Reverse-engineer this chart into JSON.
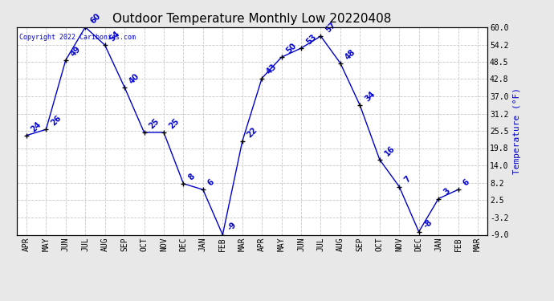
{
  "title": "Outdoor Temperature Monthly Low 20220408",
  "ylabel": "Temperature (°F)",
  "copyright": "Copyright 2022 Caribonics.com",
  "x_labels": [
    "APR",
    "MAY",
    "JUN",
    "JUL",
    "AUG",
    "SEP",
    "OCT",
    "NOV",
    "DEC",
    "JAN",
    "FEB",
    "MAR",
    "APR",
    "MAY",
    "JUN",
    "JUL",
    "AUG",
    "SEP",
    "OCT",
    "NOV",
    "DEC",
    "JAN",
    "FEB",
    "MAR"
  ],
  "y_values": [
    24,
    26,
    49,
    60,
    54,
    40,
    25,
    25,
    8,
    6,
    -9,
    22,
    43,
    50,
    53,
    57,
    48,
    34,
    16,
    7,
    -8,
    3,
    6,
    null
  ],
  "point_labels": [
    "24",
    "26",
    "49",
    "60",
    "54",
    "40",
    "25",
    "25",
    "8",
    "6",
    "-9",
    "22",
    "43",
    "50",
    "53",
    "57",
    "48",
    "34",
    "16",
    "7",
    "-8",
    "3",
    "6",
    ""
  ],
  "ylim_min": -9.0,
  "ylim_max": 60.0,
  "y_ticks_right": [
    60.0,
    54.2,
    48.5,
    42.8,
    37.0,
    31.2,
    25.5,
    19.8,
    14.0,
    8.2,
    2.5,
    -3.2,
    -9.0
  ],
  "line_color": "#0000cc",
  "marker_color": "#000000",
  "grid_color": "#c8c8c8",
  "bg_color": "#ffffff",
  "outer_bg": "#e8e8e8",
  "title_color": "#000000",
  "label_color": "#0000cc",
  "ylabel_color": "#0000cc",
  "copyright_color": "#0000cc",
  "tick_label_color": "#000000",
  "title_fontsize": 11,
  "tick_fontsize": 7,
  "label_fontsize": 7,
  "ylabel_fontsize": 8,
  "copyright_fontsize": 6
}
